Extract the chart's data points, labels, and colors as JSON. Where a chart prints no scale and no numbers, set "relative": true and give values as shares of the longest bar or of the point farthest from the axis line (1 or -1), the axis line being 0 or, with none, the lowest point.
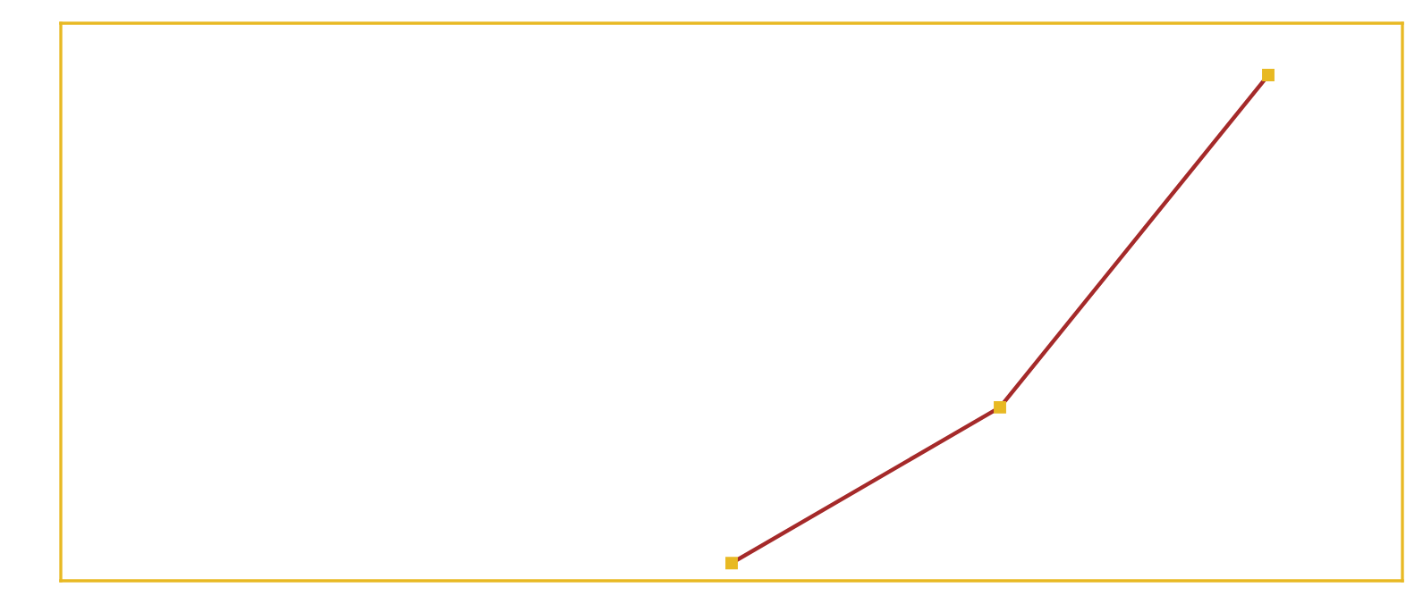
{
  "chart_data": {
    "type": "line",
    "relative": true,
    "categories": [
      null,
      null,
      null,
      null,
      null
    ],
    "marker": "square",
    "grid": false,
    "series": [
      {
        "color": "#a52a2a",
        "values": [
          null,
          null,
          0.035,
          0.343,
          1
        ]
      }
    ]
  }
}
